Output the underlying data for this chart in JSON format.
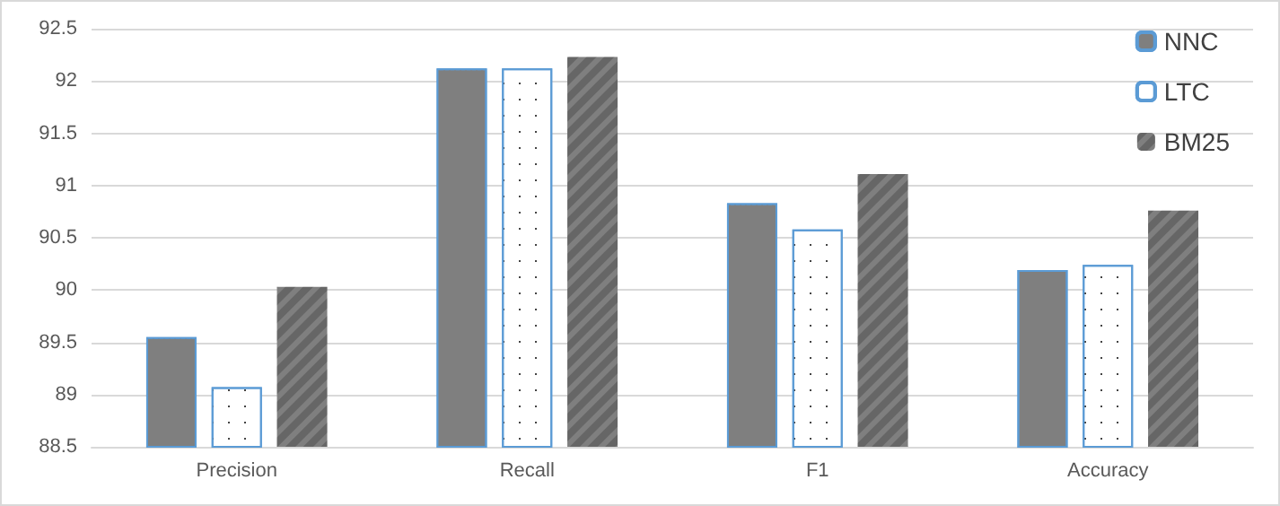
{
  "chart_data": {
    "type": "bar",
    "categories": [
      "Precision",
      "Recall",
      "F1",
      "Accuracy"
    ],
    "series": [
      {
        "name": "NNC",
        "color": "#7f7f7f",
        "values": [
          89.55,
          92.12,
          90.83,
          90.19
        ]
      },
      {
        "name": "LTC",
        "color": "#5b9bd5",
        "values": [
          89.07,
          92.12,
          90.58,
          90.24
        ]
      },
      {
        "name": "BM25",
        "color": "#7f7f7f",
        "values": [
          90.03,
          92.23,
          91.11,
          90.76
        ]
      }
    ],
    "ylim": [
      88.5,
      92.5
    ],
    "yticks": [
      88.5,
      89,
      89.5,
      90,
      90.5,
      91,
      91.5,
      92,
      92.5
    ],
    "grid": "y",
    "legend": "top right"
  }
}
